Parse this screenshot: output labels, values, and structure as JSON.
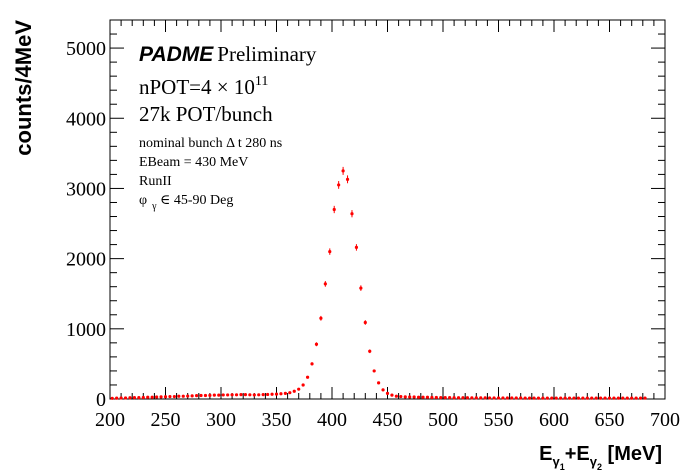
{
  "chart_data": {
    "type": "scatter",
    "title": "",
    "xlabel": {
      "main1": "E",
      "sub1": "γ",
      "subsub1": "1",
      "plus": "+",
      "main2": "E",
      "sub2": "γ",
      "subsub2": "2",
      "unit": " [MeV]"
    },
    "ylabel": "counts/4MeV",
    "xlim": [
      200,
      700
    ],
    "ylim": [
      0,
      5400
    ],
    "x_ticks": [
      "200",
      "250",
      "300",
      "350",
      "400",
      "450",
      "500",
      "550",
      "600",
      "650",
      "700"
    ],
    "y_ticks": [
      "0",
      "1000",
      "2000",
      "3000",
      "4000",
      "5000"
    ],
    "marker_color": "#ff0000",
    "annotations": {
      "brand": "PADME",
      "brand_suffix": "Preliminary",
      "npot_prefix": "nPOT=4 × 10",
      "npot_exp": "11",
      "pot_bunch": "27k POT/bunch",
      "bunch": "nominal bunch Δ t 280 ns",
      "ebeam": "EBeam = 430 MeV",
      "run": "RunII",
      "phi_sym": "φ",
      "phi_sub": "γ",
      "phi_rest": " ∈  45-90 Deg"
    },
    "series": [
      {
        "x": [
          202,
          206,
          210,
          214,
          218,
          222,
          226,
          230,
          234,
          238,
          242,
          246,
          250,
          254,
          258,
          262,
          266,
          270,
          274,
          278,
          282,
          286,
          290,
          294,
          298,
          302,
          306,
          310,
          314,
          318,
          322,
          326,
          330,
          334,
          338,
          342,
          346,
          350,
          354,
          358,
          362,
          366,
          370,
          374,
          378,
          382,
          386,
          390,
          394,
          398,
          402,
          406,
          410,
          414,
          418,
          422,
          426,
          430,
          434,
          438,
          442,
          446,
          450,
          454,
          458,
          462,
          466,
          470,
          474,
          478,
          482,
          486,
          490,
          494,
          498,
          502,
          506,
          510,
          514,
          518,
          522,
          526,
          530,
          534,
          538,
          542,
          546,
          550,
          554,
          558,
          562,
          566,
          570,
          574,
          578,
          582,
          586,
          590,
          594,
          598,
          602,
          606,
          610,
          614,
          618,
          622,
          626,
          630,
          634,
          638,
          642,
          646,
          650,
          654,
          658,
          662,
          666,
          670,
          674,
          678,
          682
        ],
        "y": [
          10,
          12,
          15,
          15,
          18,
          20,
          20,
          22,
          25,
          25,
          28,
          30,
          32,
          35,
          35,
          40,
          40,
          42,
          45,
          48,
          50,
          50,
          52,
          55,
          55,
          58,
          58,
          60,
          60,
          62,
          62,
          60,
          58,
          60,
          62,
          65,
          68,
          70,
          75,
          80,
          90,
          110,
          140,
          200,
          310,
          500,
          780,
          1150,
          1640,
          2100,
          2700,
          3050,
          3250,
          3130,
          2640,
          2160,
          1580,
          1090,
          680,
          400,
          230,
          130,
          80,
          55,
          40,
          35,
          30,
          28,
          28,
          25,
          25,
          25,
          22,
          22,
          20,
          20,
          20,
          18,
          18,
          18,
          18,
          16,
          16,
          16,
          16,
          15,
          15,
          15,
          15,
          14,
          14,
          14,
          14,
          13,
          13,
          13,
          12,
          12,
          12,
          12,
          12,
          12,
          12,
          12,
          12,
          12,
          12,
          12,
          12,
          12,
          12,
          12,
          12,
          12,
          12,
          12,
          12,
          12,
          12,
          12,
          12
        ]
      }
    ],
    "grid": false,
    "legend": "none"
  }
}
